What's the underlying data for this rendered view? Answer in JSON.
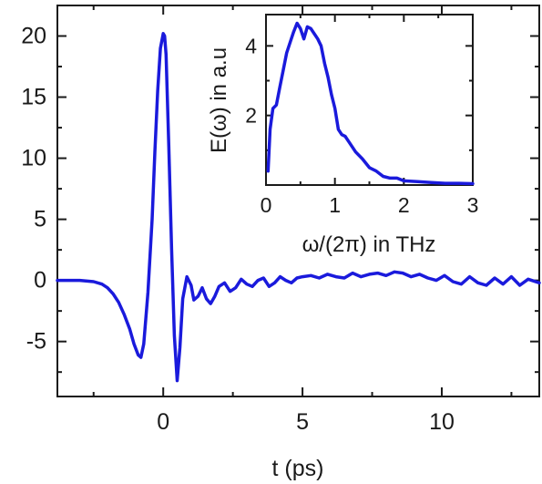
{
  "colors": {
    "line": "#1a1adc",
    "axis": "#1a1a1a",
    "background": "#ffffff"
  },
  "chart_data": [
    {
      "type": "line",
      "title": "",
      "xlabel": "t (ps)",
      "ylabel": "",
      "xlim": [
        -3.8,
        13.5
      ],
      "ylim": [
        -9.5,
        22.5
      ],
      "xticks": [
        0,
        5,
        10
      ],
      "xtick_labels": [
        "0",
        "5",
        "10"
      ],
      "yticks": [
        -5,
        0,
        5,
        10,
        15,
        20
      ],
      "ytick_labels": [
        "-5",
        "0",
        "5",
        "10",
        "15",
        "20"
      ],
      "grid": false,
      "legend": "none",
      "series": [
        {
          "x": [
            -3.8,
            -3.0,
            -2.5,
            -2.2,
            -2.0,
            -1.8,
            -1.6,
            -1.4,
            -1.2,
            -1.05,
            -0.9,
            -0.8,
            -0.7,
            -0.55,
            -0.4,
            -0.3,
            -0.2,
            -0.1,
            0.0,
            0.05,
            0.1,
            0.2,
            0.3,
            0.4,
            0.5,
            0.6,
            0.7,
            0.85,
            1.0,
            1.1,
            1.25,
            1.4,
            1.55,
            1.7,
            1.85,
            2.0,
            2.2,
            2.4,
            2.6,
            2.8,
            3.0,
            3.2,
            3.4,
            3.6,
            3.8,
            4.0,
            4.2,
            4.4,
            4.6,
            4.8,
            5.0,
            5.3,
            5.6,
            5.9,
            6.2,
            6.5,
            6.8,
            7.1,
            7.4,
            7.7,
            8.0,
            8.3,
            8.6,
            8.9,
            9.2,
            9.5,
            9.8,
            10.1,
            10.4,
            10.7,
            11.0,
            11.3,
            11.6,
            11.9,
            12.2,
            12.5,
            12.8,
            13.1,
            13.5
          ],
          "values": [
            0.0,
            0.0,
            -0.1,
            -0.3,
            -0.6,
            -1.1,
            -1.8,
            -2.8,
            -4.0,
            -5.2,
            -6.1,
            -6.3,
            -5.2,
            -1.0,
            5.0,
            10.5,
            15.5,
            19.0,
            20.2,
            20.0,
            18.5,
            11.0,
            2.5,
            -4.5,
            -8.2,
            -5.5,
            -1.5,
            0.3,
            -0.4,
            -1.6,
            -1.3,
            -0.6,
            -1.5,
            -1.9,
            -1.3,
            -0.5,
            -0.2,
            -0.9,
            -0.6,
            0.1,
            -0.3,
            -0.5,
            0.0,
            0.2,
            -0.5,
            -0.2,
            0.3,
            0.0,
            -0.2,
            0.2,
            0.3,
            0.4,
            0.2,
            0.5,
            0.3,
            0.2,
            0.6,
            0.3,
            0.5,
            0.6,
            0.4,
            0.7,
            0.6,
            0.3,
            0.5,
            0.2,
            0.0,
            0.4,
            -0.1,
            -0.3,
            0.3,
            -0.2,
            -0.4,
            0.2,
            -0.3,
            0.3,
            -0.4,
            0.1,
            -0.2
          ]
        }
      ]
    },
    {
      "type": "line",
      "title": "",
      "xlabel": "ω/(2π) in THz",
      "ylabel": "E(ω) in a.u",
      "xlim": [
        0,
        3
      ],
      "ylim": [
        0,
        4.9
      ],
      "xticks": [
        0,
        1,
        2,
        3
      ],
      "xtick_labels": [
        "0",
        "1",
        "2",
        "3"
      ],
      "yticks": [
        2,
        4
      ],
      "ytick_labels": [
        "2",
        "4"
      ],
      "grid": false,
      "legend": "none",
      "series": [
        {
          "x": [
            0.03,
            0.06,
            0.1,
            0.15,
            0.2,
            0.25,
            0.3,
            0.35,
            0.4,
            0.45,
            0.5,
            0.55,
            0.6,
            0.65,
            0.7,
            0.75,
            0.8,
            0.85,
            0.9,
            0.95,
            1.0,
            1.05,
            1.1,
            1.15,
            1.2,
            1.3,
            1.4,
            1.5,
            1.6,
            1.7,
            1.8,
            1.9,
            2.0,
            2.2,
            2.4,
            2.6,
            2.8,
            3.0
          ],
          "values": [
            0.4,
            1.6,
            2.2,
            2.3,
            2.8,
            3.3,
            3.8,
            4.1,
            4.4,
            4.65,
            4.5,
            4.2,
            4.55,
            4.5,
            4.35,
            4.2,
            4.0,
            3.5,
            3.1,
            2.6,
            2.2,
            1.6,
            1.45,
            1.4,
            1.25,
            0.95,
            0.75,
            0.5,
            0.4,
            0.25,
            0.2,
            0.2,
            0.12,
            0.1,
            0.07,
            0.05,
            0.05,
            0.04
          ]
        }
      ]
    }
  ]
}
